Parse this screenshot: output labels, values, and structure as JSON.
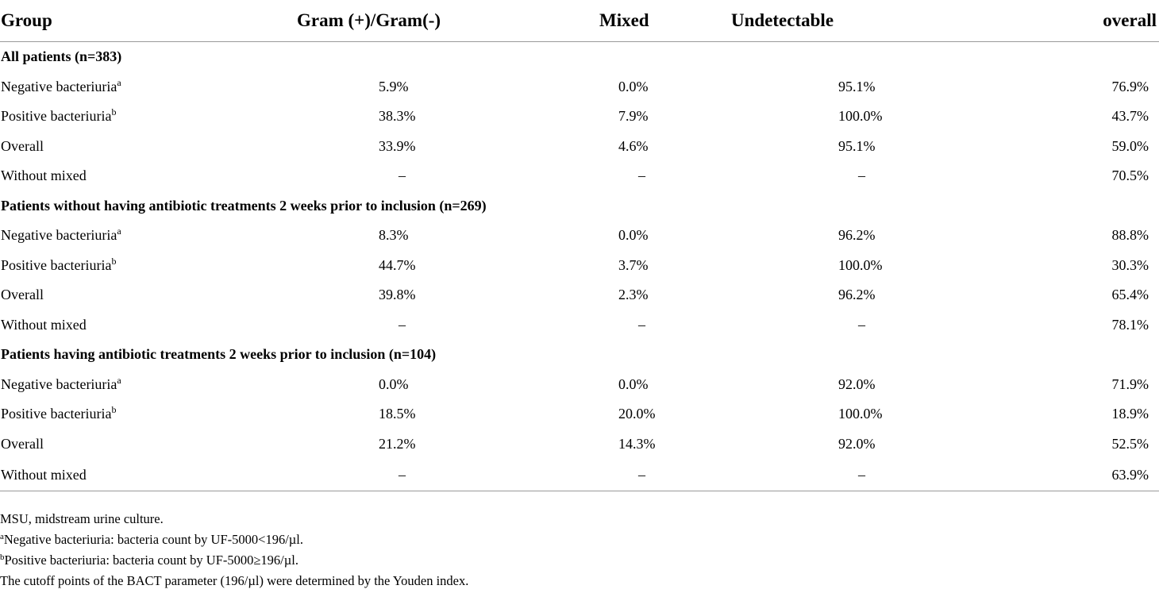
{
  "table": {
    "headers": [
      "Group",
      "Gram (+)/Gram(-)",
      "Mixed",
      "Undetectable",
      "overall"
    ],
    "groups": [
      {
        "title": "All patients (n=383)",
        "rows": [
          {
            "label": "Negative bacteriuria",
            "sup": "a",
            "values": [
              "5.9%",
              "0.0%",
              "95.1%",
              "76.9%"
            ]
          },
          {
            "label": "Positive bacteriuria",
            "sup": "b",
            "values": [
              "38.3%",
              "7.9%",
              "100.0%",
              "43.7%"
            ]
          },
          {
            "label": "Overall",
            "sup": "",
            "values": [
              "33.9%",
              "4.6%",
              "95.1%",
              "59.0%"
            ]
          },
          {
            "label": "Without mixed",
            "sup": "",
            "values": [
              "–",
              "–",
              "–",
              "70.5%"
            ]
          }
        ]
      },
      {
        "title": "Patients without having antibiotic treatments 2 weeks prior to inclusion (n=269)",
        "rows": [
          {
            "label": "Negative bacteriuria",
            "sup": "a",
            "values": [
              "8.3%",
              "0.0%",
              "96.2%",
              "88.8%"
            ]
          },
          {
            "label": "Positive bacteriuria",
            "sup": "b",
            "values": [
              "44.7%",
              "3.7%",
              "100.0%",
              "30.3%"
            ]
          },
          {
            "label": "Overall",
            "sup": "",
            "values": [
              "39.8%",
              "2.3%",
              "96.2%",
              "65.4%"
            ]
          },
          {
            "label": "Without mixed",
            "sup": "",
            "values": [
              "–",
              "–",
              "–",
              "78.1%"
            ]
          }
        ]
      },
      {
        "title": "Patients having antibiotic treatments 2 weeks prior to inclusion (n=104)",
        "rows": [
          {
            "label": "Negative bacteriuria",
            "sup": "a",
            "values": [
              "0.0%",
              "0.0%",
              "92.0%",
              "71.9%"
            ]
          },
          {
            "label": "Positive bacteriuria",
            "sup": "b",
            "values": [
              "18.5%",
              "20.0%",
              "100.0%",
              "18.9%"
            ]
          },
          {
            "label": "Overall",
            "sup": "",
            "values": [
              "21.2%",
              "14.3%",
              "92.0%",
              "52.5%"
            ]
          },
          {
            "label": "Without mixed",
            "sup": "",
            "values": [
              "–",
              "–",
              "–",
              "63.9%"
            ]
          }
        ]
      }
    ]
  },
  "footnotes": {
    "abbrev": "MSU, midstream urine culture.",
    "a_mark": "a",
    "a_text": "Negative bacteriuria: bacteria count by UF-5000<196/µl.",
    "b_mark": "b",
    "b_text": "Positive bacteriuria: bacteria count by UF-5000≥196/µl.",
    "cutoff": "The cutoff points of the BACT parameter (196/µl) were determined by the Youden index."
  }
}
